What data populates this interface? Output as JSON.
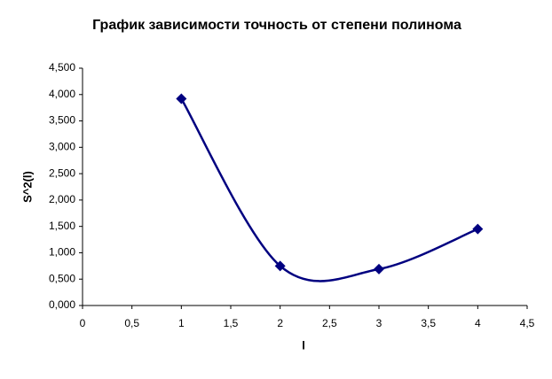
{
  "chart_data": {
    "type": "scatter",
    "title": "График зависимости точность от степени полинома",
    "x_label": "l",
    "y_label": "S^2(l)",
    "series": [
      {
        "name": "S^2(l)",
        "color": "#000080",
        "x": [
          1,
          2,
          3,
          4
        ],
        "values": [
          3.92,
          0.75,
          0.69,
          1.45
        ]
      }
    ],
    "smooth": true,
    "xlim": [
      0,
      4.5
    ],
    "xticks": [
      0,
      {
        "value": 0.5,
        "label": "0,5"
      },
      1,
      {
        "value": 1.5,
        "label": "1,5"
      },
      2,
      {
        "value": 2.5,
        "label": "2,5"
      },
      3,
      {
        "value": 3.5,
        "label": "3,5"
      },
      4,
      {
        "value": 4.5,
        "label": "4,5"
      }
    ],
    "ylim": [
      0,
      4.5
    ],
    "yticks": [
      {
        "value": 0,
        "label": "0,000"
      },
      {
        "value": 0.5,
        "label": "0,500"
      },
      {
        "value": 1,
        "label": "1,000"
      },
      {
        "value": 1.5,
        "label": "1,500"
      },
      {
        "value": 2,
        "label": "2,000"
      },
      {
        "value": 2.5,
        "label": "2,500"
      },
      {
        "value": 3,
        "label": "3,000"
      },
      {
        "value": 3.5,
        "label": "3,500"
      },
      {
        "value": 4,
        "label": "4,000"
      },
      {
        "value": 4.5,
        "label": "4,500"
      }
    ]
  }
}
